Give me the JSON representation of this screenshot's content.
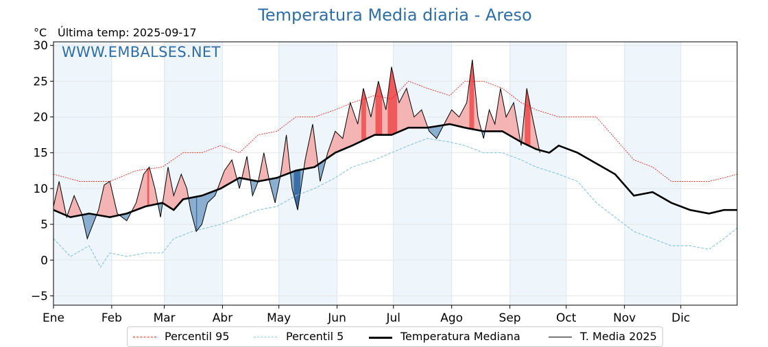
{
  "header": {
    "title": "Temperatura Media diaria - Areso",
    "unit": "°C",
    "last_temp": "Última temp: 2025-09-17",
    "watermark": "WWW.EMBALSES.NET"
  },
  "legend": {
    "p95": "Percentil 95",
    "p5": "Percentil 5",
    "median": "Temperatura Mediana",
    "current": "T. Media 2025"
  },
  "colors": {
    "p95": "#e8261f",
    "p5": "#8ec8e0",
    "median": "#000000",
    "current": "#000000",
    "above_fill": "#f4b4b4",
    "above_fill_strong": "#ef5a5a",
    "below_fill": "#8aaecf",
    "below_fill_strong": "#3a6fa5",
    "month_band": "#eef5fb",
    "title": "#2f6ea5"
  },
  "chart_data": {
    "type": "line",
    "title": "Temperatura Media diaria - Areso",
    "ylabel": "°C",
    "ylim": [
      -6.3,
      30.5
    ],
    "yticks": [
      -5,
      0,
      5,
      10,
      15,
      20,
      25,
      30
    ],
    "xlim_days": [
      1,
      365
    ],
    "months": [
      "Ene",
      "Feb",
      "Mar",
      "Abr",
      "May",
      "Jun",
      "Jul",
      "Ago",
      "Sep",
      "Oct",
      "Nov",
      "Dic"
    ],
    "grid": true,
    "legend_position": "bottom-center",
    "series": [
      {
        "name": "Percentil 95",
        "points": [
          [
            1,
            12
          ],
          [
            15,
            11
          ],
          [
            31,
            11
          ],
          [
            45,
            12.5
          ],
          [
            59,
            13
          ],
          [
            70,
            15
          ],
          [
            80,
            15
          ],
          [
            90,
            16
          ],
          [
            100,
            15
          ],
          [
            110,
            17.5
          ],
          [
            120,
            18
          ],
          [
            130,
            20
          ],
          [
            140,
            20
          ],
          [
            151,
            21
          ],
          [
            160,
            22
          ],
          [
            172,
            23
          ],
          [
            181,
            22.5
          ],
          [
            190,
            25
          ],
          [
            200,
            24
          ],
          [
            212,
            23
          ],
          [
            220,
            25
          ],
          [
            230,
            25
          ],
          [
            240,
            24
          ],
          [
            250,
            22
          ],
          [
            258,
            21
          ],
          [
            270,
            20
          ],
          [
            280,
            20
          ],
          [
            290,
            20
          ],
          [
            300,
            17
          ],
          [
            310,
            14
          ],
          [
            320,
            13
          ],
          [
            330,
            11
          ],
          [
            340,
            11
          ],
          [
            350,
            11
          ],
          [
            358,
            11.5
          ],
          [
            365,
            12
          ]
        ]
      },
      {
        "name": "Percentil 5",
        "points": [
          [
            1,
            3
          ],
          [
            10,
            0.5
          ],
          [
            20,
            2
          ],
          [
            26,
            -1
          ],
          [
            31,
            1
          ],
          [
            40,
            0.5
          ],
          [
            50,
            1
          ],
          [
            59,
            1
          ],
          [
            65,
            3
          ],
          [
            75,
            4
          ],
          [
            90,
            5
          ],
          [
            100,
            6
          ],
          [
            110,
            7
          ],
          [
            120,
            7.5
          ],
          [
            130,
            9
          ],
          [
            140,
            10
          ],
          [
            151,
            11.5
          ],
          [
            160,
            13
          ],
          [
            172,
            14
          ],
          [
            181,
            15
          ],
          [
            190,
            16
          ],
          [
            200,
            17
          ],
          [
            212,
            16.5
          ],
          [
            220,
            16
          ],
          [
            230,
            15
          ],
          [
            240,
            15
          ],
          [
            250,
            14
          ],
          [
            258,
            13
          ],
          [
            270,
            12
          ],
          [
            280,
            11
          ],
          [
            290,
            8
          ],
          [
            300,
            6
          ],
          [
            310,
            4
          ],
          [
            320,
            3
          ],
          [
            330,
            2
          ],
          [
            340,
            2
          ],
          [
            350,
            1.5
          ],
          [
            358,
            3
          ],
          [
            365,
            4.5
          ]
        ]
      },
      {
        "name": "Temperatura Mediana",
        "points": [
          [
            1,
            7
          ],
          [
            10,
            6
          ],
          [
            20,
            6.5
          ],
          [
            31,
            6
          ],
          [
            40,
            6.5
          ],
          [
            50,
            7.5
          ],
          [
            59,
            8
          ],
          [
            65,
            7
          ],
          [
            70,
            8.5
          ],
          [
            80,
            9
          ],
          [
            90,
            10
          ],
          [
            100,
            11.5
          ],
          [
            110,
            11
          ],
          [
            120,
            11.5
          ],
          [
            130,
            12.5
          ],
          [
            140,
            13
          ],
          [
            151,
            15
          ],
          [
            160,
            16
          ],
          [
            172,
            17.5
          ],
          [
            181,
            17.5
          ],
          [
            190,
            18.5
          ],
          [
            200,
            18.5
          ],
          [
            212,
            19
          ],
          [
            220,
            18.5
          ],
          [
            230,
            18
          ],
          [
            240,
            18
          ],
          [
            250,
            16.5
          ],
          [
            258,
            15.5
          ],
          [
            265,
            15
          ],
          [
            270,
            16
          ],
          [
            280,
            15
          ],
          [
            290,
            13.5
          ],
          [
            300,
            12
          ],
          [
            310,
            9
          ],
          [
            320,
            9.5
          ],
          [
            330,
            8
          ],
          [
            340,
            7
          ],
          [
            350,
            6.5
          ],
          [
            358,
            7
          ],
          [
            365,
            7
          ]
        ]
      },
      {
        "name": "T. Media 2025",
        "points": [
          [
            1,
            7.5
          ],
          [
            4,
            11
          ],
          [
            8,
            6
          ],
          [
            12,
            9
          ],
          [
            16,
            6.5
          ],
          [
            19,
            3
          ],
          [
            22,
            5
          ],
          [
            25,
            7
          ],
          [
            28,
            10.5
          ],
          [
            31,
            11
          ],
          [
            35,
            6.5
          ],
          [
            40,
            5.5
          ],
          [
            45,
            8
          ],
          [
            49,
            12
          ],
          [
            52,
            13
          ],
          [
            55,
            10
          ],
          [
            58,
            6
          ],
          [
            62,
            13
          ],
          [
            65,
            9
          ],
          [
            69,
            12
          ],
          [
            72,
            10
          ],
          [
            74,
            7
          ],
          [
            77,
            4
          ],
          [
            80,
            5
          ],
          [
            83,
            8
          ],
          [
            87,
            9
          ],
          [
            92,
            12.5
          ],
          [
            96,
            14
          ],
          [
            100,
            10
          ],
          [
            104,
            14.5
          ],
          [
            107,
            9
          ],
          [
            110,
            11
          ],
          [
            113,
            15
          ],
          [
            116,
            11
          ],
          [
            119,
            8
          ],
          [
            122,
            12
          ],
          [
            125,
            17.5
          ],
          [
            128,
            10
          ],
          [
            131,
            7
          ],
          [
            135,
            14
          ],
          [
            139,
            19
          ],
          [
            143,
            11
          ],
          [
            147,
            15
          ],
          [
            151,
            18
          ],
          [
            155,
            17
          ],
          [
            159,
            22
          ],
          [
            163,
            19
          ],
          [
            166,
            24
          ],
          [
            170,
            20
          ],
          [
            174,
            25
          ],
          [
            178,
            21
          ],
          [
            181,
            27
          ],
          [
            185,
            22
          ],
          [
            189,
            24
          ],
          [
            193,
            20
          ],
          [
            197,
            21
          ],
          [
            201,
            18
          ],
          [
            205,
            17
          ],
          [
            209,
            19
          ],
          [
            213,
            21
          ],
          [
            217,
            20
          ],
          [
            221,
            22
          ],
          [
            224,
            28
          ],
          [
            227,
            20
          ],
          [
            230,
            17
          ],
          [
            233,
            21
          ],
          [
            236,
            19
          ],
          [
            239,
            24
          ],
          [
            242,
            20
          ],
          [
            246,
            22
          ],
          [
            250,
            16
          ],
          [
            253,
            24
          ],
          [
            256,
            20
          ],
          [
            260,
            15
          ]
        ]
      }
    ]
  }
}
